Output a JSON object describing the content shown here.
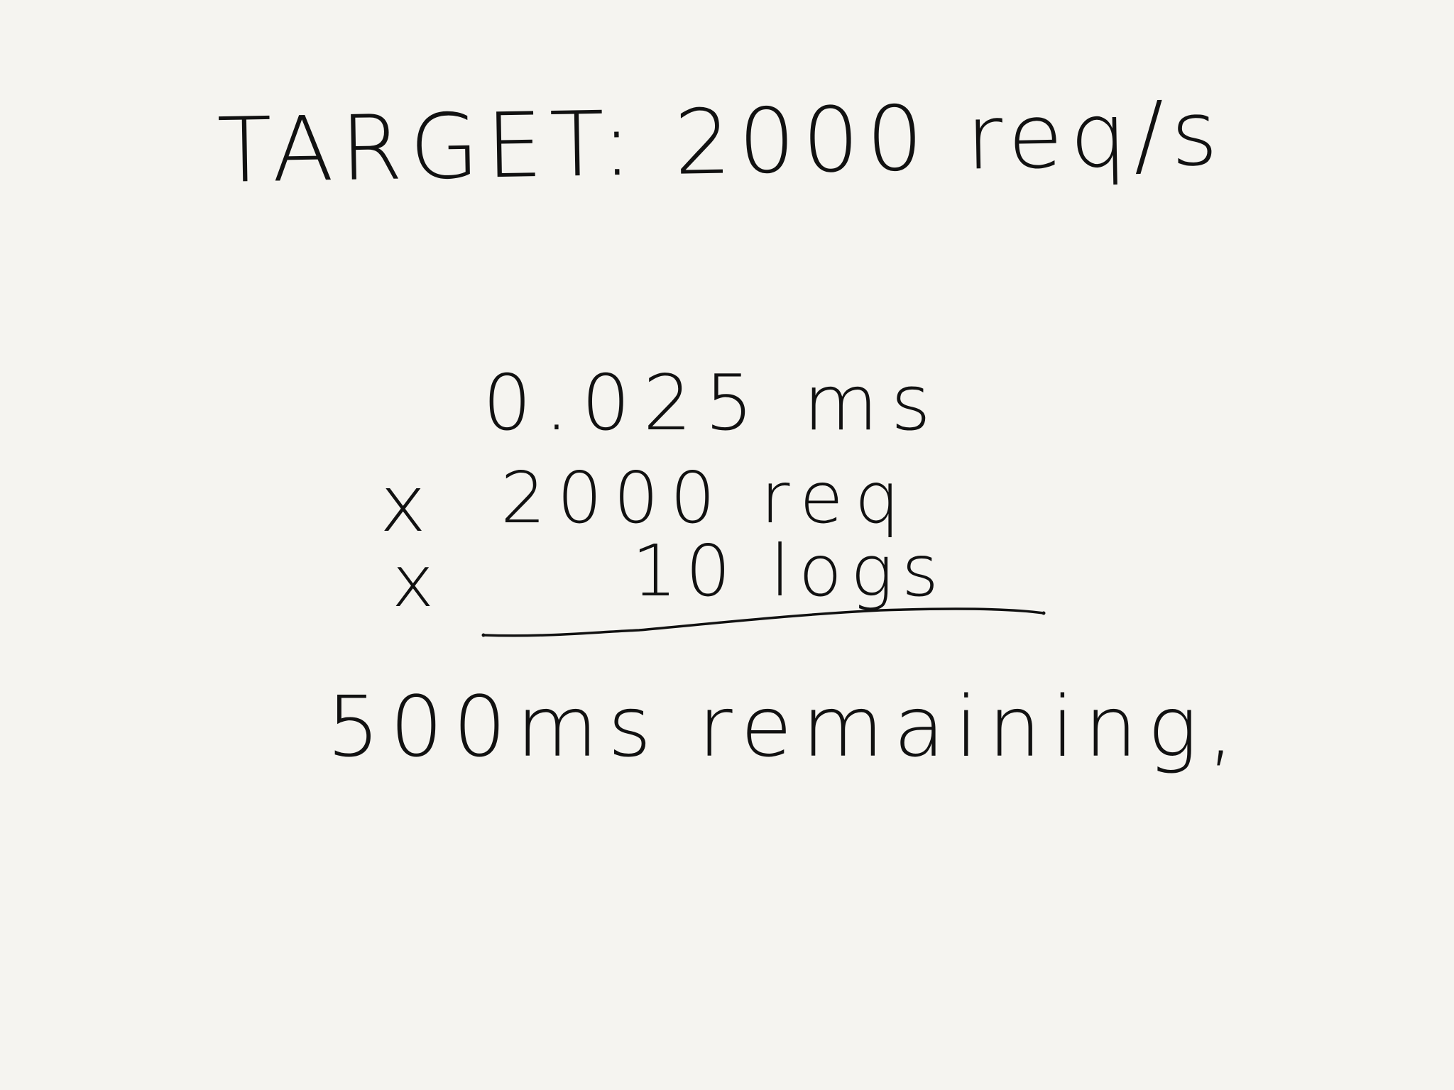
{
  "note": {
    "target": "TARGET: 2000 req/s",
    "calculation": {
      "operator": "x",
      "operands": [
        "0.025 ms",
        "2000 req",
        "10 logs"
      ]
    },
    "result": "500ms remaining,"
  },
  "colors": {
    "background": "#f5f4f0",
    "ink": "#111111"
  }
}
